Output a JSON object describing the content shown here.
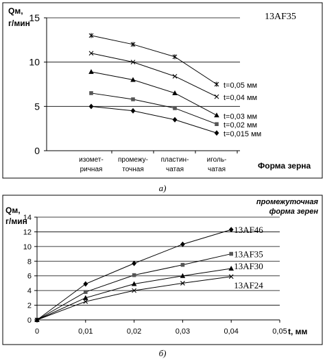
{
  "chart_data": [
    {
      "type": "line",
      "label": "Qм,",
      "ylabel_line2": "г/мин",
      "xlabel": "Форма зерна",
      "caption": "а)",
      "material": "13AF35",
      "categories_line1": [
        "изомет-",
        "промежу-",
        "пластин-",
        "иголь-"
      ],
      "categories_line2": [
        "ричная",
        "точная",
        "чатая",
        "чатая"
      ],
      "ylim": [
        0,
        15
      ],
      "yticks": [
        "0",
        "5",
        "10",
        "15"
      ],
      "series": [
        {
          "name": "t=0,05 мм",
          "marker": "star",
          "values": [
            13,
            12,
            10.6,
            7.5
          ]
        },
        {
          "name": "t=0,04 мм",
          "marker": "x",
          "values": [
            11,
            10,
            8.4,
            6.1
          ]
        },
        {
          "name": "t=0,03 мм",
          "marker": "triangle",
          "values": [
            8.9,
            8.0,
            6.5,
            4.0
          ]
        },
        {
          "name": "t=0,02 мм",
          "marker": "square",
          "values": [
            6.5,
            5.8,
            4.8,
            3.0
          ]
        },
        {
          "name": "t=0,015 мм",
          "marker": "diamond",
          "values": [
            5.0,
            4.5,
            3.5,
            2.0
          ]
        }
      ],
      "grid": true
    },
    {
      "type": "line",
      "label": "Qм,",
      "ylabel_line2": "г/мин",
      "xlabel": "t, мм",
      "caption": "б)",
      "note_line1": "промежуточная",
      "note_line2": "форма зерен",
      "x": [
        0,
        0.01,
        0.02,
        0.03,
        0.04
      ],
      "xticks": [
        "0",
        "0,01",
        "0,02",
        "0,03",
        "0,04",
        "0,05"
      ],
      "xlim": [
        0,
        0.05
      ],
      "ylim": [
        0,
        14
      ],
      "yticks": [
        "0",
        "2",
        "4",
        "6",
        "8",
        "10",
        "12",
        "14"
      ],
      "series": [
        {
          "name": "13AF46",
          "marker": "diamond",
          "values": [
            0,
            4.9,
            7.7,
            10.3,
            12.3
          ]
        },
        {
          "name": "13AF35",
          "marker": "square",
          "values": [
            0,
            3.8,
            6.1,
            7.5,
            9.0
          ]
        },
        {
          "name": "13AF30",
          "marker": "triangle",
          "values": [
            0,
            3.0,
            4.9,
            6.0,
            7.0
          ]
        },
        {
          "name": "13AF24",
          "marker": "x",
          "values": [
            0,
            2.5,
            4.0,
            5.0,
            5.9
          ]
        }
      ],
      "grid": true
    }
  ]
}
